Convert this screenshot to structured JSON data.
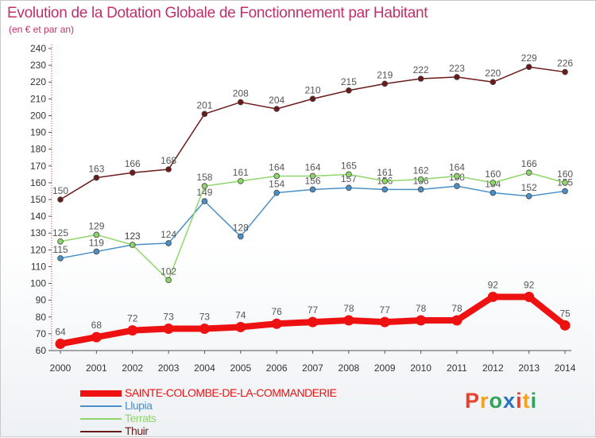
{
  "title": "Evolution de la Dotation Globale de Fonctionnement par Habitant",
  "subtitle": "(en € et par an)",
  "logo": {
    "text": "Proxiti",
    "colors": [
      "#e8402a",
      "#f5a21a",
      "#2fa35a",
      "#2b72c4"
    ]
  },
  "chart_data": {
    "type": "line",
    "title": "Evolution de la Dotation Globale de Fonctionnement par Habitant",
    "ylabel": "(en € et par an)",
    "x": [
      "2000",
      "2001",
      "2002",
      "2003",
      "2004",
      "2005",
      "2006",
      "2007",
      "2008",
      "2009",
      "2010",
      "2011",
      "2012",
      "2013",
      "2014"
    ],
    "ylim": [
      60,
      240
    ],
    "yticks": [
      60,
      70,
      80,
      90,
      100,
      110,
      120,
      130,
      140,
      150,
      160,
      170,
      180,
      190,
      200,
      210,
      220,
      230,
      240
    ],
    "grid": false,
    "legend": "bottom-left",
    "series": [
      {
        "name": "SAINTE-COLOMBE-DE-LA-COMMANDERIE",
        "color": "#ee1111",
        "label_color": "#555555",
        "thick": true,
        "values": [
          64,
          68,
          72,
          73,
          73,
          74,
          76,
          77,
          78,
          77,
          78,
          78,
          92,
          92,
          75
        ],
        "labels": [
          "64",
          "68",
          "72",
          "73",
          "73",
          "74",
          "76",
          "77",
          "78",
          "77",
          "78",
          "78",
          "92",
          "92",
          "75"
        ]
      },
      {
        "name": "Llupia",
        "color": "#4a90c8",
        "label_color": "#555555",
        "thick": false,
        "values": [
          115,
          119,
          123,
          124,
          149,
          128,
          154,
          156,
          157,
          156,
          156,
          158,
          154,
          152,
          155
        ],
        "labels": [
          "115",
          "119",
          "123",
          "124",
          "149",
          "128",
          "154",
          "156",
          "157",
          "156",
          "156",
          "158",
          "154",
          "152",
          "155"
        ]
      },
      {
        "name": "Terrats",
        "color": "#8fd66a",
        "label_color": "#555555",
        "thick": false,
        "values": [
          125,
          129,
          123,
          102,
          158,
          161,
          164,
          164,
          165,
          161,
          162,
          164,
          160,
          166,
          160
        ],
        "labels": [
          "125",
          "129",
          "123",
          "102",
          "158",
          "161",
          "164",
          "164",
          "165",
          "161",
          "162",
          "164",
          "160",
          "166",
          "160"
        ]
      },
      {
        "name": "Thuir",
        "color": "#6b1a1a",
        "label_color": "#555555",
        "thick": false,
        "values": [
          150,
          163,
          166,
          168,
          201,
          208,
          204,
          210,
          215,
          219,
          222,
          223,
          220,
          229,
          226
        ],
        "labels": [
          "150",
          "163",
          "166",
          "168",
          "201",
          "208",
          "204",
          "210",
          "215",
          "219",
          "222",
          "223",
          "220",
          "229",
          "226"
        ]
      }
    ]
  }
}
